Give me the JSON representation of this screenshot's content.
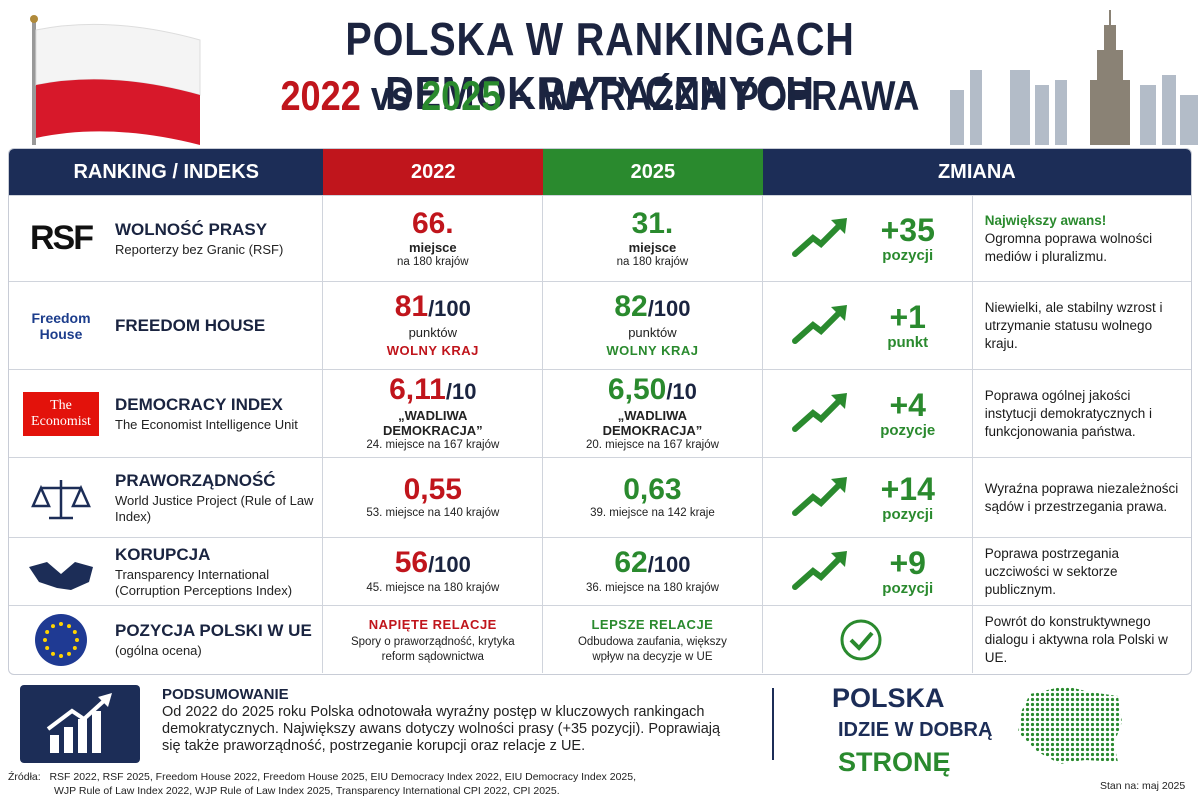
{
  "header": {
    "title": "POLSKA W RANKINGACH DEMOKRATYCZNYCH",
    "subtitle": {
      "year_a": "2022",
      "vs": "vs",
      "year_b": "2025",
      "rest": "– WYRAŹNA POPRAWA"
    }
  },
  "table": {
    "columns": [
      "RANKING / INDEKS",
      "2022",
      "2025",
      "ZMIANA"
    ],
    "rows": [
      {
        "logo": "RSF",
        "name": "WOLNOŚĆ PRASY",
        "org": "Reporterzy bez Granic (RSF)",
        "y2022": {
          "main": "66.",
          "label": "miejsce",
          "note": "na 180 krajów"
        },
        "y2025": {
          "main": "31.",
          "label": "miejsce",
          "note": "na 180 krajów"
        },
        "change": {
          "value": "+35",
          "unit": "pozycji"
        },
        "highlight": "Największy awans!",
        "comment": "Ogromna poprawa wolności mediów i pluralizmu."
      },
      {
        "logo": "Freedom House",
        "name": "FREEDOM HOUSE",
        "y2022": {
          "main": "81",
          "denom": "/100",
          "label": "punktów",
          "status": "WOLNY KRAJ"
        },
        "y2025": {
          "main": "82",
          "denom": "/100",
          "label": "punktów",
          "status": "WOLNY KRAJ"
        },
        "change": {
          "value": "+1",
          "unit": "punkt"
        },
        "comment": "Niewielki, ale stabilny wzrost i utrzymanie statusu wolnego kraju."
      },
      {
        "logo": "The Economist",
        "name": "DEMOCRACY INDEX",
        "org": "The Economist Intelligence Unit",
        "y2022": {
          "main": "6,11",
          "denom": "/10",
          "label": "„WADLIWA DEMOKRACJA”",
          "note": "24. miejsce na 167 krajów"
        },
        "y2025": {
          "main": "6,50",
          "denom": "/10",
          "label": "„WADLIWA DEMOKRACJA”",
          "note": "20. miejsce na 167 krajów"
        },
        "change": {
          "value": "+4",
          "unit": "pozycje"
        },
        "comment": "Poprawa ogólnej jakości instytucji demokratycznych i funkcjonowania państwa."
      },
      {
        "name": "PRAWORZĄDNOŚĆ",
        "org": "World Justice Project (Rule of Law Index)",
        "y2022": {
          "main": "0,55",
          "note": "53. miejsce na 140 krajów"
        },
        "y2025": {
          "main": "0,63",
          "note": "39. miejsce na 142 kraje"
        },
        "change": {
          "value": "+14",
          "unit": "pozycji"
        },
        "comment": "Wyraźna poprawa niezależności sądów i przestrzegania prawa."
      },
      {
        "name": "KORUPCJA",
        "org": "Transparency International (Corruption Perceptions Index)",
        "y2022": {
          "main": "56",
          "denom": "/100",
          "note": "45. miejsce na 180 krajów"
        },
        "y2025": {
          "main": "62",
          "denom": "/100",
          "note": "36. miejsce na 180 krajów"
        },
        "change": {
          "value": "+9",
          "unit": "pozycji"
        },
        "comment": "Poprawa postrzegania uczciwości w sektorze publicznym."
      },
      {
        "name": "POZYCJA POLSKI W UE",
        "org": "(ogólna ocena)",
        "y2022": {
          "status": "NAPIĘTE RELACJE",
          "note": "Spory o praworządność, krytyka reform sądownictwa"
        },
        "y2025": {
          "status": "LEPSZE RELACJE",
          "note": "Odbudowa zaufania, większy wpływ na decyzje w UE"
        },
        "comment": "Powrót do konstruktywnego dialogu i aktywna rola Polski w UE."
      }
    ]
  },
  "summary": {
    "title": "PODSUMOWANIE",
    "text": "Od 2022 do 2025 roku Polska odnotowała wyraźny postęp w kluczowych rankingach demokratycznych. Największy awans dotyczy wolności prasy (+35 pozycji). Poprawiają się także praworządność, postrzeganie korupcji oraz relacje z UE."
  },
  "slogan": [
    "POLSKA",
    "IDZIE W DOBRĄ",
    "STRONĘ"
  ],
  "sources": {
    "label": "Źródła:",
    "line1": "RSF 2022, RSF 2025, Freedom House 2022, Freedom House 2025, EIU Democracy Index 2022, EIU Democracy Index 2025,",
    "line2": "WJP Rule of Law Index 2022, WJP Rule of Law Index 2025, Transparency International CPI 2022, CPI 2025."
  },
  "date": "Stan na: maj 2025"
}
